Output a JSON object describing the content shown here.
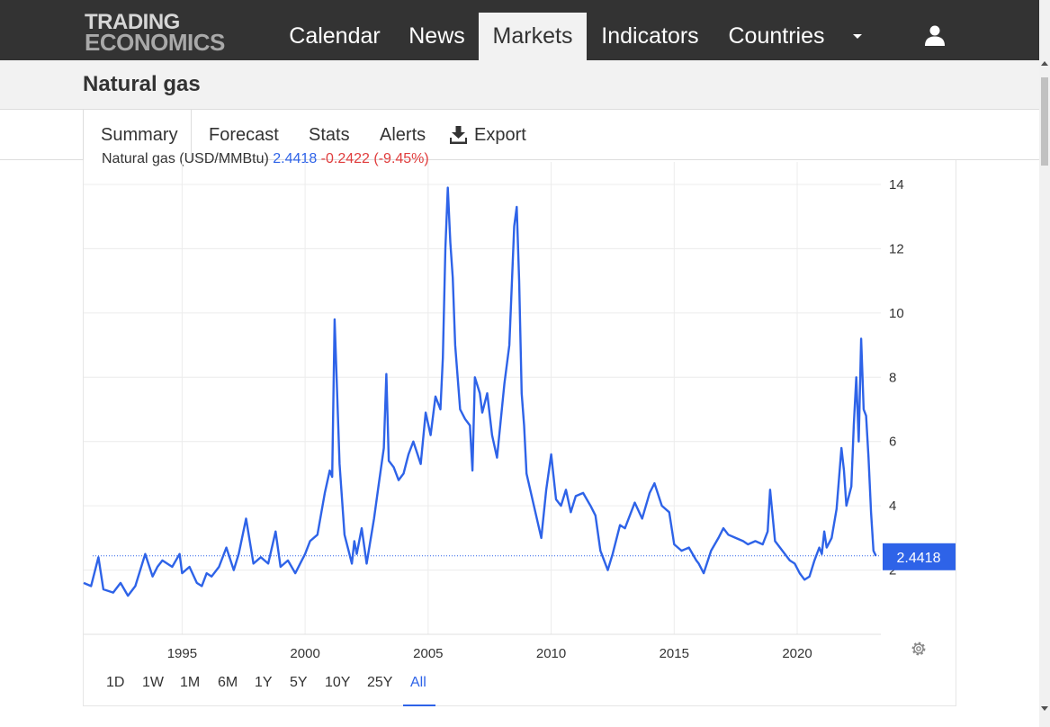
{
  "logo": {
    "line1": "TRADING",
    "line2": "ECONOMICS"
  },
  "nav": {
    "items": [
      "Calendar",
      "News",
      "Markets",
      "Indicators",
      "Countries"
    ],
    "active": "Markets"
  },
  "page": {
    "title": "Natural gas"
  },
  "tabs": {
    "summary": "Summary",
    "forecast": "Forecast",
    "stats": "Stats",
    "alerts": "Alerts",
    "export": "Export"
  },
  "legend": {
    "name": "Natural gas (USD/MMBtu)",
    "value": "2.4418",
    "change": "-0.2422 (-9.45%)"
  },
  "ranges": [
    "1D",
    "1W",
    "1M",
    "6M",
    "1Y",
    "5Y",
    "10Y",
    "25Y",
    "All"
  ],
  "active_range": "All",
  "icons": {
    "user": "user-icon",
    "gear": "gear-icon",
    "export": "download-icon",
    "menu": "caret-down-icon"
  },
  "colors": {
    "line": "#2e63e8",
    "topbar": "#333333",
    "change_negative": "#e03c3c",
    "label_bg": "#2e63e8"
  },
  "chart_data": {
    "type": "line",
    "title": "",
    "xlabel": "",
    "ylabel": "",
    "xlim": [
      1991.0,
      2023.4
    ],
    "ylim": [
      0,
      14.7
    ],
    "x_ticks": [
      1995,
      2000,
      2005,
      2010,
      2015,
      2020
    ],
    "y_ticks": [
      2,
      4,
      6,
      8,
      10,
      12,
      14
    ],
    "grid": true,
    "last_value_label": "2.4418",
    "series": [
      {
        "name": "Natural gas (USD/MMBtu)",
        "points": [
          [
            1991.0,
            1.6
          ],
          [
            1991.3,
            1.5
          ],
          [
            1991.6,
            2.4
          ],
          [
            1991.8,
            1.4
          ],
          [
            1992.2,
            1.3
          ],
          [
            1992.5,
            1.6
          ],
          [
            1992.8,
            1.2
          ],
          [
            1993.1,
            1.5
          ],
          [
            1993.5,
            2.5
          ],
          [
            1993.8,
            1.8
          ],
          [
            1994.0,
            2.1
          ],
          [
            1994.2,
            2.3
          ],
          [
            1994.6,
            2.1
          ],
          [
            1994.9,
            2.5
          ],
          [
            1995.0,
            1.9
          ],
          [
            1995.3,
            2.1
          ],
          [
            1995.6,
            1.6
          ],
          [
            1995.8,
            1.5
          ],
          [
            1996.0,
            1.9
          ],
          [
            1996.2,
            1.8
          ],
          [
            1996.5,
            2.1
          ],
          [
            1996.8,
            2.7
          ],
          [
            1997.1,
            2.0
          ],
          [
            1997.3,
            2.5
          ],
          [
            1997.6,
            3.6
          ],
          [
            1997.9,
            2.2
          ],
          [
            1998.2,
            2.4
          ],
          [
            1998.5,
            2.2
          ],
          [
            1998.8,
            3.2
          ],
          [
            1999.0,
            2.1
          ],
          [
            1999.3,
            2.3
          ],
          [
            1999.6,
            1.9
          ],
          [
            1999.8,
            2.2
          ],
          [
            2000.0,
            2.5
          ],
          [
            2000.2,
            2.9
          ],
          [
            2000.5,
            3.1
          ],
          [
            2000.8,
            4.4
          ],
          [
            2001.0,
            5.1
          ],
          [
            2001.1,
            4.9
          ],
          [
            2001.2,
            9.8
          ],
          [
            2001.4,
            5.3
          ],
          [
            2001.6,
            3.1
          ],
          [
            2001.9,
            2.2
          ],
          [
            2002.0,
            2.9
          ],
          [
            2002.1,
            2.5
          ],
          [
            2002.3,
            3.3
          ],
          [
            2002.5,
            2.2
          ],
          [
            2002.8,
            3.6
          ],
          [
            2003.0,
            4.7
          ],
          [
            2003.2,
            5.8
          ],
          [
            2003.3,
            8.1
          ],
          [
            2003.4,
            5.4
          ],
          [
            2003.6,
            5.2
          ],
          [
            2003.8,
            4.8
          ],
          [
            2004.0,
            5.0
          ],
          [
            2004.2,
            5.6
          ],
          [
            2004.4,
            6.0
          ],
          [
            2004.7,
            5.3
          ],
          [
            2004.9,
            6.9
          ],
          [
            2005.1,
            6.2
          ],
          [
            2005.3,
            7.4
          ],
          [
            2005.5,
            7.0
          ],
          [
            2005.6,
            8.6
          ],
          [
            2005.7,
            12.0
          ],
          [
            2005.8,
            13.9
          ],
          [
            2005.9,
            12.2
          ],
          [
            2006.0,
            11.1
          ],
          [
            2006.1,
            9.0
          ],
          [
            2006.3,
            7.0
          ],
          [
            2006.5,
            6.7
          ],
          [
            2006.7,
            6.5
          ],
          [
            2006.8,
            5.1
          ],
          [
            2006.9,
            8.0
          ],
          [
            2007.1,
            7.5
          ],
          [
            2007.2,
            6.9
          ],
          [
            2007.4,
            7.5
          ],
          [
            2007.6,
            6.2
          ],
          [
            2007.8,
            5.5
          ],
          [
            2008.1,
            7.8
          ],
          [
            2008.3,
            9.0
          ],
          [
            2008.5,
            12.7
          ],
          [
            2008.6,
            13.3
          ],
          [
            2008.7,
            11.0
          ],
          [
            2008.8,
            7.5
          ],
          [
            2008.9,
            6.5
          ],
          [
            2009.0,
            5.0
          ],
          [
            2009.3,
            4.0
          ],
          [
            2009.6,
            3.0
          ],
          [
            2009.8,
            4.5
          ],
          [
            2010.0,
            5.6
          ],
          [
            2010.2,
            4.2
          ],
          [
            2010.4,
            4.0
          ],
          [
            2010.6,
            4.5
          ],
          [
            2010.8,
            3.8
          ],
          [
            2011.0,
            4.3
          ],
          [
            2011.3,
            4.4
          ],
          [
            2011.6,
            4.0
          ],
          [
            2011.8,
            3.7
          ],
          [
            2012.0,
            2.6
          ],
          [
            2012.3,
            2.0
          ],
          [
            2012.5,
            2.5
          ],
          [
            2012.8,
            3.4
          ],
          [
            2013.0,
            3.3
          ],
          [
            2013.4,
            4.1
          ],
          [
            2013.7,
            3.6
          ],
          [
            2014.0,
            4.4
          ],
          [
            2014.2,
            4.7
          ],
          [
            2014.5,
            4.0
          ],
          [
            2014.8,
            3.8
          ],
          [
            2015.0,
            2.8
          ],
          [
            2015.3,
            2.6
          ],
          [
            2015.6,
            2.7
          ],
          [
            2015.9,
            2.3
          ],
          [
            2016.0,
            2.2
          ],
          [
            2016.2,
            1.9
          ],
          [
            2016.5,
            2.6
          ],
          [
            2016.8,
            3.0
          ],
          [
            2017.0,
            3.3
          ],
          [
            2017.2,
            3.1
          ],
          [
            2017.5,
            3.0
          ],
          [
            2017.8,
            2.9
          ],
          [
            2018.0,
            2.8
          ],
          [
            2018.3,
            2.9
          ],
          [
            2018.6,
            2.8
          ],
          [
            2018.8,
            3.2
          ],
          [
            2018.9,
            4.5
          ],
          [
            2019.1,
            2.9
          ],
          [
            2019.4,
            2.6
          ],
          [
            2019.7,
            2.3
          ],
          [
            2019.9,
            2.2
          ],
          [
            2020.1,
            1.9
          ],
          [
            2020.3,
            1.7
          ],
          [
            2020.5,
            1.8
          ],
          [
            2020.7,
            2.3
          ],
          [
            2020.9,
            2.7
          ],
          [
            2021.0,
            2.5
          ],
          [
            2021.1,
            3.2
          ],
          [
            2021.2,
            2.7
          ],
          [
            2021.4,
            3.0
          ],
          [
            2021.6,
            3.9
          ],
          [
            2021.8,
            5.8
          ],
          [
            2021.9,
            5.1
          ],
          [
            2022.0,
            4.0
          ],
          [
            2022.2,
            4.6
          ],
          [
            2022.3,
            6.5
          ],
          [
            2022.4,
            8.0
          ],
          [
            2022.5,
            6.0
          ],
          [
            2022.6,
            9.2
          ],
          [
            2022.7,
            7.0
          ],
          [
            2022.8,
            6.8
          ],
          [
            2022.9,
            5.5
          ],
          [
            2023.0,
            3.8
          ],
          [
            2023.1,
            2.6
          ],
          [
            2023.2,
            2.4418
          ]
        ]
      }
    ]
  }
}
